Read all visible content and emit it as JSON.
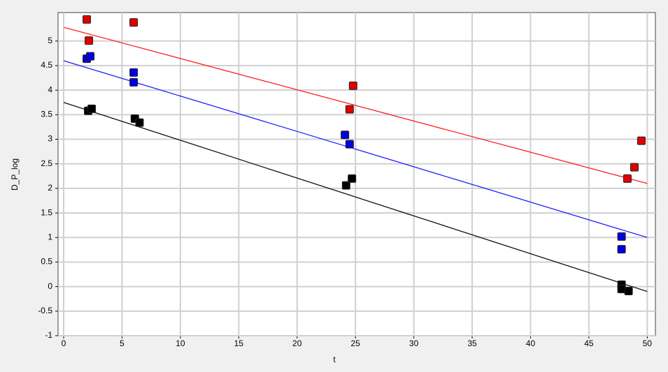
{
  "chart_data": {
    "type": "scatter",
    "x_label": "t",
    "y_label": "D_P_log",
    "xlim": [
      -0.48,
      50.7
    ],
    "ylim": [
      -1,
      5.58
    ],
    "xticks": [
      0,
      5,
      10,
      15,
      20,
      25,
      30,
      35,
      40,
      45,
      50
    ],
    "yticks": [
      -1,
      -0.5,
      0,
      0.5,
      1,
      1.5,
      2,
      2.5,
      3,
      3.5,
      4,
      4.5,
      5
    ],
    "grid": true,
    "series": [
      {
        "color": "#e00000",
        "x": [
          1.98,
          2.16,
          6.0,
          24.5,
          24.8,
          48.3,
          48.9,
          49.5
        ],
        "values": [
          5.44,
          5.01,
          5.38,
          3.61,
          4.09,
          2.2,
          2.43,
          2.97
        ]
      },
      {
        "color": "#0000e0",
        "x": [
          1.98,
          2.28,
          6.0,
          6.0,
          24.1,
          24.5,
          47.8,
          47.8
        ],
        "values": [
          4.64,
          4.69,
          4.36,
          4.16,
          3.09,
          2.9,
          1.02,
          0.76
        ]
      },
      {
        "color": "#000000",
        "x": [
          2.1,
          2.4,
          6.1,
          6.5,
          24.2,
          24.7,
          47.8,
          47.8,
          48.4
        ],
        "values": [
          3.58,
          3.62,
          3.42,
          3.34,
          2.06,
          2.2,
          0.04,
          -0.05,
          -0.09
        ]
      }
    ],
    "lines": [
      {
        "color": "#ff2020",
        "x": [
          0,
          50
        ],
        "values": [
          5.28,
          2.1
        ]
      },
      {
        "color": "#2020ff",
        "x": [
          0,
          50
        ],
        "values": [
          4.6,
          1.0
        ]
      },
      {
        "color": "#111111",
        "x": [
          0,
          50
        ],
        "values": [
          3.75,
          -0.1
        ]
      }
    ]
  }
}
